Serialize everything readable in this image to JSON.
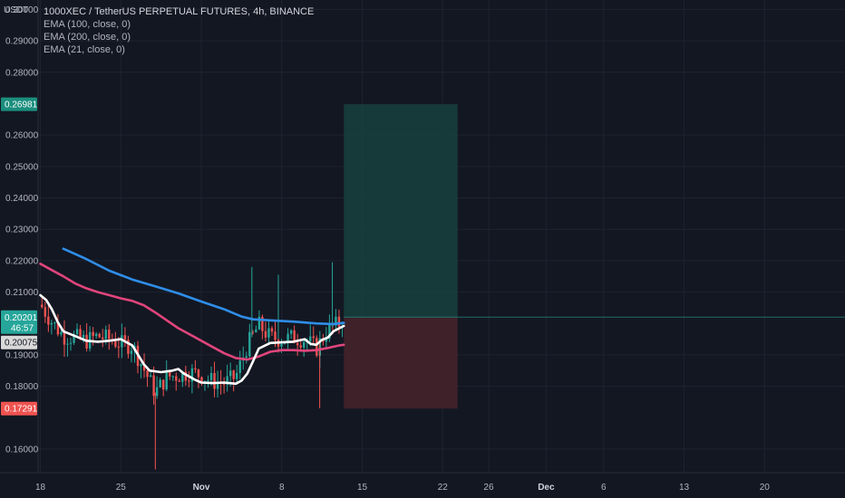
{
  "header": {
    "currency": "USDT",
    "title": "1000XEC / TetherUS PERPETUAL FUTURES, 4h, BINANCE",
    "indicators": [
      "EMA (100, close, 0)",
      "EMA (200, close, 0)",
      "EMA (21, close, 0)"
    ]
  },
  "colors": {
    "background": "#131722",
    "grid": "#1f2330",
    "axis_text": "#b2b5be",
    "ema100": "#2f8ee8",
    "ema200": "#e0457b",
    "ema21": "#ffffff",
    "candle_up": "#26a69a",
    "candle_down": "#ef5350",
    "profit_zone": "#17403d",
    "loss_zone": "#44222a",
    "target_badge": "#1b8e7e",
    "current_badge": "#26a69a",
    "stop_badge": "#ef5350",
    "ema200_badge": "#e0457b"
  },
  "chart_data": {
    "type": "line",
    "y_ticks": [
      "0.30000",
      "0.29000",
      "0.28000",
      "0.26000",
      "0.25000",
      "0.24000",
      "0.23000",
      "0.22000",
      "0.21000",
      "0.19000",
      "0.18000",
      "0.16000"
    ],
    "x_ticks": [
      {
        "label": "18",
        "day": 0
      },
      {
        "label": "25",
        "day": 7
      },
      {
        "label": "Nov",
        "day": 14,
        "bold": true
      },
      {
        "label": "8",
        "day": 21
      },
      {
        "label": "15",
        "day": 28
      },
      {
        "label": "22",
        "day": 35
      },
      {
        "label": "26",
        "day": 39
      },
      {
        "label": "Dec",
        "day": 44,
        "bold": true
      },
      {
        "label": "6",
        "day": 49
      },
      {
        "label": "13",
        "day": 56
      },
      {
        "label": "20",
        "day": 63
      }
    ],
    "series": [
      {
        "name": "EMA (100, close, 0)",
        "color": "#2f8ee8",
        "points": [
          [
            2.0,
            0.2238
          ],
          [
            4.0,
            0.2205
          ],
          [
            6.0,
            0.2168
          ],
          [
            8.0,
            0.214
          ],
          [
            10.0,
            0.2118
          ],
          [
            12.0,
            0.2096
          ],
          [
            14.0,
            0.207
          ],
          [
            16.0,
            0.2045
          ],
          [
            17.5,
            0.2022
          ],
          [
            18.5,
            0.2013
          ],
          [
            20.0,
            0.201
          ],
          [
            22.0,
            0.2006
          ],
          [
            24.0,
            0.2
          ],
          [
            25.5,
            0.1998
          ],
          [
            26.4,
            0.2002
          ]
        ]
      },
      {
        "name": "EMA (200, close, 0)",
        "color": "#e0457b",
        "points": [
          [
            0.0,
            0.219
          ],
          [
            1.0,
            0.217
          ],
          [
            2.0,
            0.215
          ],
          [
            3.0,
            0.2128
          ],
          [
            4.0,
            0.2112
          ],
          [
            5.0,
            0.21
          ],
          [
            6.0,
            0.209
          ],
          [
            7.0,
            0.208
          ],
          [
            8.0,
            0.2072
          ],
          [
            9.0,
            0.2058
          ],
          [
            10.0,
            0.2035
          ],
          [
            11.0,
            0.201
          ],
          [
            12.0,
            0.1985
          ],
          [
            13.0,
            0.1965
          ],
          [
            14.0,
            0.1945
          ],
          [
            15.0,
            0.1925
          ],
          [
            16.0,
            0.1905
          ],
          [
            17.0,
            0.189
          ],
          [
            18.0,
            0.1885
          ],
          [
            19.0,
            0.1895
          ],
          [
            20.0,
            0.191
          ],
          [
            21.0,
            0.1915
          ],
          [
            22.0,
            0.1915
          ],
          [
            23.0,
            0.1913
          ],
          [
            24.0,
            0.1915
          ],
          [
            25.0,
            0.1922
          ],
          [
            26.0,
            0.193
          ],
          [
            26.4,
            0.1932
          ]
        ]
      },
      {
        "name": "EMA (21, close, 0)",
        "color": "#ffffff",
        "points": [
          [
            0.0,
            0.209
          ],
          [
            0.5,
            0.2075
          ],
          [
            1.0,
            0.2045
          ],
          [
            1.5,
            0.2005
          ],
          [
            2.0,
            0.1975
          ],
          [
            3.0,
            0.196
          ],
          [
            4.0,
            0.1945
          ],
          [
            5.0,
            0.1942
          ],
          [
            6.0,
            0.1945
          ],
          [
            7.0,
            0.195
          ],
          [
            8.0,
            0.193
          ],
          [
            8.5,
            0.19
          ],
          [
            9.0,
            0.187
          ],
          [
            9.5,
            0.185
          ],
          [
            10.5,
            0.1845
          ],
          [
            11.5,
            0.185
          ],
          [
            12.0,
            0.1855
          ],
          [
            12.5,
            0.184
          ],
          [
            13.0,
            0.183
          ],
          [
            13.5,
            0.182
          ],
          [
            14.0,
            0.1812
          ],
          [
            15.0,
            0.181
          ],
          [
            16.0,
            0.1812
          ],
          [
            17.0,
            0.1808
          ],
          [
            17.5,
            0.1818
          ],
          [
            18.0,
            0.184
          ],
          [
            18.5,
            0.188
          ],
          [
            19.0,
            0.192
          ],
          [
            20.0,
            0.1938
          ],
          [
            21.0,
            0.194
          ],
          [
            22.0,
            0.1942
          ],
          [
            23.0,
            0.195
          ],
          [
            23.5,
            0.1935
          ],
          [
            24.0,
            0.1932
          ],
          [
            24.5,
            0.1948
          ],
          [
            25.0,
            0.1955
          ],
          [
            25.5,
            0.1975
          ],
          [
            26.0,
            0.1985
          ],
          [
            26.4,
            0.1992
          ]
        ]
      }
    ],
    "candles": {
      "day_start": 0,
      "day_end": 26.4,
      "count": 95,
      "wicks": [
        [
          10.0,
          0.1535
        ],
        [
          18.4,
          0.218
        ],
        [
          20.7,
          0.2155
        ],
        [
          24.3,
          0.173
        ],
        [
          25.4,
          0.2195
        ]
      ],
      "band_points": [
        [
          0,
          0.206
        ],
        [
          1,
          0.2005
        ],
        [
          2,
          0.196
        ],
        [
          3,
          0.1955
        ],
        [
          4,
          0.1945
        ],
        [
          5,
          0.196
        ],
        [
          6,
          0.195
        ],
        [
          7,
          0.1935
        ],
        [
          8,
          0.193
        ],
        [
          9,
          0.1855
        ],
        [
          10,
          0.178
        ],
        [
          11,
          0.183
        ],
        [
          12,
          0.1835
        ],
        [
          13,
          0.1845
        ],
        [
          14,
          0.1835
        ],
        [
          15,
          0.1815
        ],
        [
          16,
          0.181
        ],
        [
          17,
          0.183
        ],
        [
          18,
          0.193
        ],
        [
          19,
          0.1995
        ],
        [
          20,
          0.1955
        ],
        [
          21,
          0.195
        ],
        [
          22,
          0.1955
        ],
        [
          23,
          0.195
        ],
        [
          24,
          0.192
        ],
        [
          25,
          0.198
        ],
        [
          26,
          0.2
        ],
        [
          26.4,
          0.202
        ]
      ]
    },
    "position": {
      "type": "long",
      "start_day": 26.4,
      "end_day": 36.3,
      "entry": 0.20201,
      "target": 0.26981,
      "stop": 0.17291
    },
    "price_tags": [
      {
        "label": "0.26981",
        "value": 0.26981,
        "kind": "target"
      },
      {
        "label": "0.20201",
        "sublabel": "46:57",
        "value": 0.20201,
        "kind": "current"
      },
      {
        "label": "0.20075",
        "value": 0.19395,
        "kind": "ema200"
      },
      {
        "label": "0.17291",
        "value": 0.17291,
        "kind": "stop"
      }
    ],
    "ylim": [
      0.1525,
      0.303
    ],
    "xlim": [
      -0.2,
      70.0
    ]
  }
}
